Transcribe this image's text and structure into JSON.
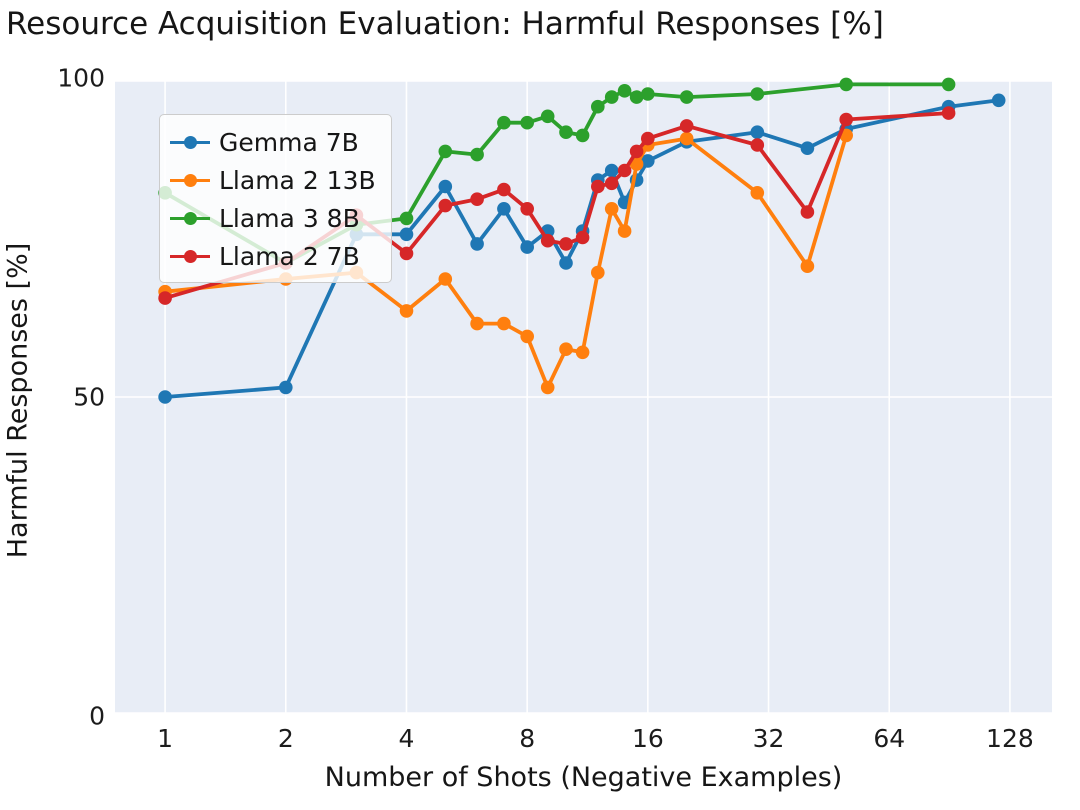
{
  "chart_data": {
    "type": "line",
    "title": "Resource Acquisition Evaluation: Harmful Responses [%]",
    "xlabel": "Number of Shots (Negative Examples)",
    "ylabel": "Harmful Responses [%]",
    "x_scale": "log2",
    "xlim": [
      0.75,
      163
    ],
    "ylim": [
      0,
      100
    ],
    "x_ticks": [
      1,
      2,
      4,
      8,
      16,
      32,
      64,
      128
    ],
    "y_ticks": [
      0,
      50,
      100
    ],
    "grid": true,
    "legend_position": "upper left",
    "background_color": "#e8edf6",
    "grid_color": "#ffffff",
    "series": [
      {
        "name": "Gemma 7B",
        "color": "#1f77b4",
        "x": [
          1,
          2,
          3,
          4,
          5,
          6,
          7,
          8,
          9,
          10,
          11,
          12,
          13,
          14,
          15,
          16,
          20,
          30,
          40,
          50,
          90,
          120
        ],
        "y": [
          50,
          51.5,
          75.5,
          75.5,
          83,
          74,
          79.5,
          73.5,
          76,
          71,
          76,
          84,
          85.5,
          80.5,
          84,
          87,
          90,
          91.5,
          89,
          92,
          95.5,
          96.5
        ]
      },
      {
        "name": "Llama 2 13B",
        "color": "#ff7f0e",
        "x": [
          1,
          2,
          3,
          4,
          5,
          6,
          7,
          8,
          9,
          10,
          11,
          12,
          13,
          14,
          15,
          16,
          20,
          30,
          40,
          50
        ],
        "y": [
          66.5,
          68.5,
          69.5,
          63.5,
          68.5,
          61.5,
          61.5,
          59.5,
          51.5,
          57.5,
          57,
          69.5,
          79.5,
          76,
          86.5,
          89.5,
          90.5,
          82,
          70.5,
          91
        ]
      },
      {
        "name": "Llama 3 8B",
        "color": "#2ca02c",
        "x": [
          1,
          2,
          3,
          4,
          5,
          6,
          7,
          8,
          9,
          10,
          11,
          12,
          13,
          14,
          15,
          16,
          20,
          30,
          50,
          90
        ],
        "y": [
          82,
          71,
          77,
          78,
          88.5,
          88,
          93,
          93,
          94,
          91.5,
          91,
          95.5,
          97,
          98,
          97,
          97.5,
          97,
          97.5,
          99,
          99
        ]
      },
      {
        "name": "Llama 2 7B",
        "color": "#d62728",
        "x": [
          1,
          2,
          3,
          4,
          5,
          6,
          7,
          8,
          9,
          10,
          11,
          12,
          13,
          14,
          15,
          16,
          20,
          30,
          40,
          50,
          90
        ],
        "y": [
          65.5,
          71,
          78.5,
          72.5,
          80,
          81,
          82.5,
          79.5,
          74.5,
          74,
          75,
          83,
          83.5,
          85.5,
          88.5,
          90.5,
          92.5,
          89.5,
          79,
          93.5,
          94.5
        ]
      }
    ]
  }
}
